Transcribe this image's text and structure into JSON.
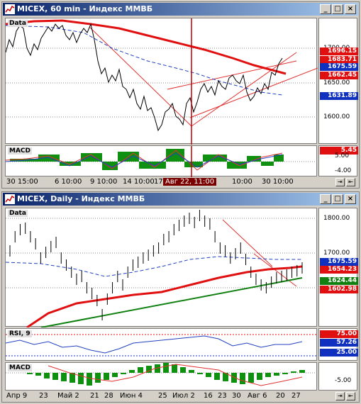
{
  "window_top": {
    "title": "MICEX, 60 min - Индекс ММВБ",
    "panel_price": "Data",
    "panel_macd": "MACD",
    "y_labels": [
      "1700.00",
      "1650.00",
      "1600.00"
    ],
    "macd_labels": [
      "5.00",
      "-4.00"
    ],
    "tags": [
      {
        "text": "1696.15",
        "color": "#e01010"
      },
      {
        "text": "1683.71",
        "color": "#e01010"
      },
      {
        "text": "1675.59",
        "color": "#1030c0"
      },
      {
        "text": "1662.45",
        "color": "#e01010"
      },
      {
        "text": "1631.89",
        "color": "#1030c0"
      },
      {
        "text": "5.45",
        "color": "#e01010"
      }
    ],
    "x_labels": [
      "30 15:00",
      "6 10:00",
      "9 10:00",
      "14 10:00",
      "17 10:00",
      "Авг 22, 11:00",
      "10:00",
      "30 10:00"
    ],
    "cursor_label": "Авг 22, 11:00"
  },
  "window_bottom": {
    "title": "MICEX, Daily - Индекс ММВБ",
    "panel_price": "Data",
    "panel_rsi": "RSI, 9",
    "panel_macd": "MACD",
    "y_labels": [
      "1800.00",
      "1700.00"
    ],
    "rsi_labels": [],
    "macd_labels": [
      "-5.00"
    ],
    "tags": [
      {
        "text": "1675.59",
        "color": "#1030c0"
      },
      {
        "text": "1654.23",
        "color": "#e01010"
      },
      {
        "text": "1624.44",
        "color": "#108010"
      },
      {
        "text": "1602.98",
        "color": "#e01010"
      }
    ],
    "rsi_tags": [
      {
        "text": "75.00",
        "color": "#e01010"
      },
      {
        "text": "57.26",
        "color": "#1030c0"
      },
      {
        "text": "25.00",
        "color": "#1030c0"
      }
    ],
    "x_labels": [
      "Апр 9",
      "23",
      "Май 2",
      "21",
      "28",
      "Июн 4",
      "25",
      "Июл 2",
      "16",
      "23",
      "30",
      "Авг 6",
      "20",
      "27"
    ]
  },
  "buttons": {
    "min": "_",
    "max": "□",
    "close": "×"
  }
}
